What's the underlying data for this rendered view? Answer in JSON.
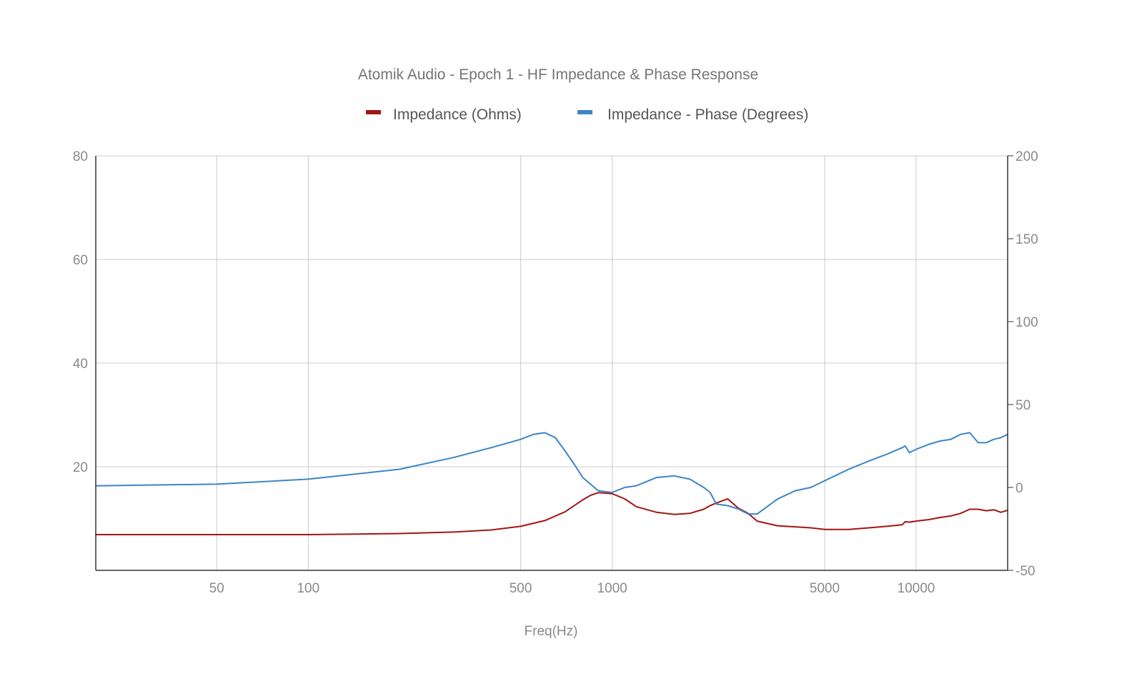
{
  "chart_data": {
    "type": "line",
    "title": "Atomik Audio - Epoch 1 - HF Impedance & Phase Response",
    "xlabel": "Freq(Hz)",
    "x_scale": "log",
    "xlim": [
      20,
      20000
    ],
    "x_ticks": [
      50,
      100,
      500,
      1000,
      5000,
      10000
    ],
    "y_left_lim": [
      0,
      80
    ],
    "y_left_ticks": [
      20,
      40,
      60,
      80
    ],
    "y_right_lim": [
      -50,
      200
    ],
    "y_right_ticks": [
      -50,
      0,
      50,
      100,
      150,
      200
    ],
    "grid": true,
    "legend_position": "top",
    "series": [
      {
        "name": "Impedance (Ohms)",
        "axis": "left",
        "color": "#a31515",
        "x": [
          20,
          50,
          100,
          200,
          300,
          400,
          500,
          600,
          700,
          800,
          850,
          900,
          1000,
          1100,
          1200,
          1400,
          1600,
          1800,
          2000,
          2100,
          2200,
          2400,
          2600,
          2800,
          3000,
          3500,
          4000,
          4500,
          5000,
          6000,
          7000,
          8000,
          9000,
          9200,
          9500,
          10000,
          11000,
          12000,
          13000,
          14000,
          15000,
          16000,
          17000,
          18000,
          19000,
          20000
        ],
        "values": [
          6.9,
          6.9,
          6.9,
          7.1,
          7.4,
          7.8,
          8.5,
          9.6,
          11.3,
          13.6,
          14.5,
          15.0,
          14.8,
          13.8,
          12.3,
          11.2,
          10.8,
          11.0,
          11.8,
          12.5,
          13.0,
          13.8,
          12.0,
          11.0,
          9.5,
          8.6,
          8.4,
          8.2,
          7.9,
          7.9,
          8.2,
          8.5,
          8.8,
          9.4,
          9.3,
          9.5,
          9.8,
          10.2,
          10.5,
          11.0,
          11.8,
          11.8,
          11.5,
          11.7,
          11.2,
          11.6
        ]
      },
      {
        "name": "Impedance - Phase (Degrees)",
        "axis": "right",
        "color": "#3d85c6",
        "x": [
          20,
          50,
          100,
          200,
          300,
          400,
          500,
          550,
          600,
          650,
          700,
          750,
          800,
          900,
          1000,
          1100,
          1200,
          1400,
          1600,
          1800,
          2000,
          2100,
          2200,
          2400,
          2600,
          2800,
          3000,
          3500,
          4000,
          4500,
          5000,
          6000,
          7000,
          8000,
          9000,
          9200,
          9500,
          10000,
          11000,
          12000,
          13000,
          14000,
          15000,
          16000,
          17000,
          18000,
          19000,
          20000
        ],
        "values": [
          1,
          2,
          5,
          11,
          18,
          24,
          29,
          32,
          33,
          30,
          22,
          14,
          6,
          -2,
          -3,
          0,
          1,
          6,
          7,
          5,
          0,
          -3,
          -10,
          -11,
          -13,
          -16,
          -16,
          -7,
          -2,
          0,
          4,
          11,
          16,
          20,
          24,
          25,
          21,
          23,
          26,
          28,
          29,
          32,
          33,
          27,
          27,
          29,
          30,
          32
        ]
      }
    ]
  }
}
